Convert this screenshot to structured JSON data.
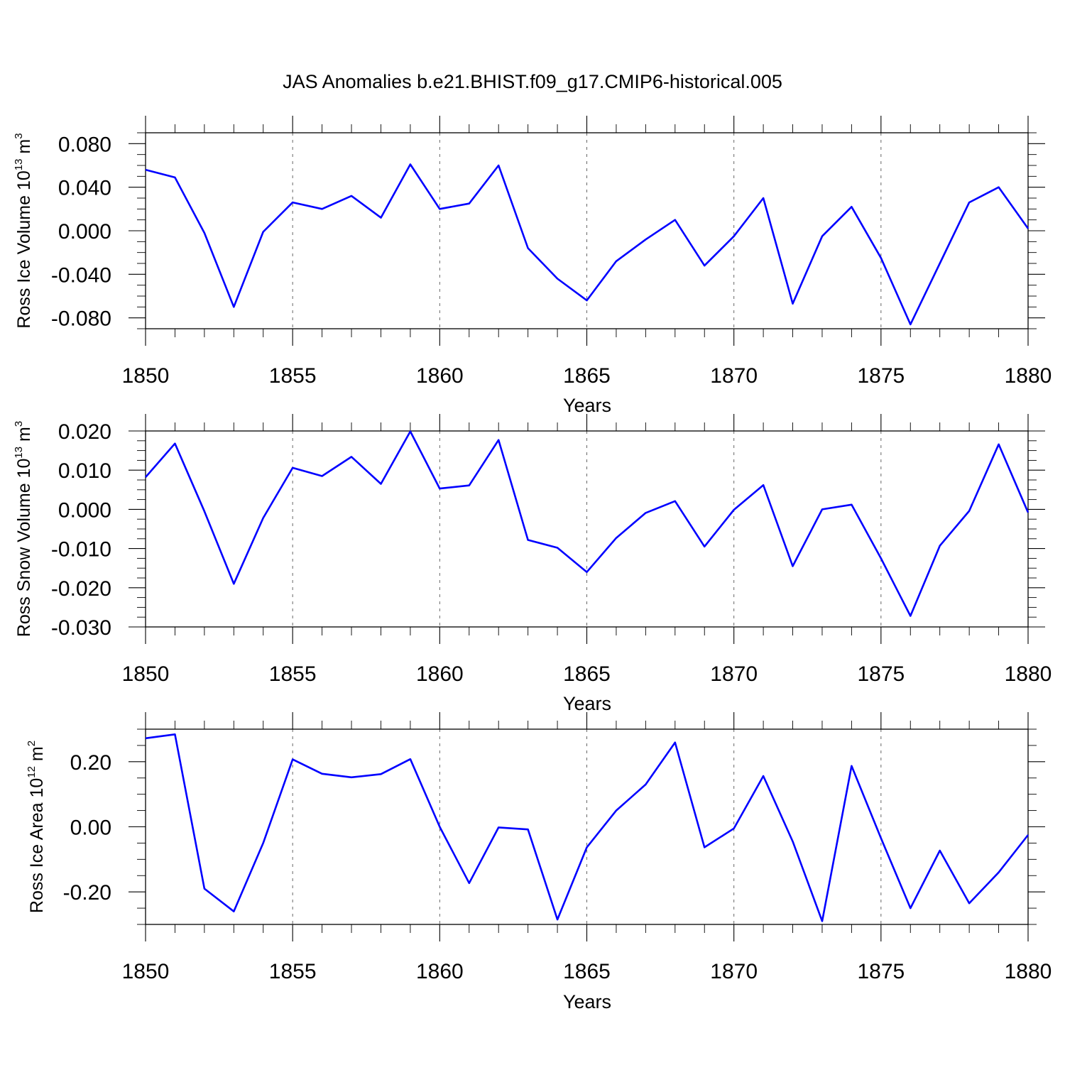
{
  "title": "JAS Anomalies b.e21.BHIST.f09_g17.CMIP6-historical.005",
  "colors": {
    "series": "#0000ff",
    "axes": "#000000",
    "grid": "#666666"
  },
  "chart_data": [
    {
      "type": "line",
      "ylabel": {
        "name": "Ross Ice Volume 10",
        "exp": "13",
        "unit": " m",
        "unit_exp": "3"
      },
      "xlabel": "Years",
      "xlim": [
        1850,
        1880
      ],
      "ylim": [
        -0.09,
        0.09
      ],
      "x_ticks": [
        1850,
        1855,
        1860,
        1865,
        1870,
        1875,
        1880
      ],
      "x_tick_labels": [
        "1850",
        "1855",
        "1860",
        "1865",
        "1870",
        "1875",
        "1880"
      ],
      "y_ticks": [
        -0.08,
        -0.04,
        0.0,
        0.04,
        0.08
      ],
      "y_tick_labels": [
        "-0.080",
        "-0.040",
        "0.000",
        "0.040",
        "0.080"
      ],
      "y_minor_step": 0.01,
      "grid_x": true,
      "series": [
        {
          "name": "Ross Ice Volume",
          "x": [
            1850,
            1851,
            1852,
            1853,
            1854,
            1855,
            1856,
            1857,
            1858,
            1859,
            1860,
            1861,
            1862,
            1863,
            1864,
            1865,
            1866,
            1867,
            1868,
            1869,
            1870,
            1871,
            1872,
            1873,
            1874,
            1875,
            1876,
            1877,
            1878,
            1879,
            1880
          ],
          "values": [
            0.056,
            0.049,
            -0.002,
            -0.07,
            -0.001,
            0.026,
            0.02,
            0.032,
            0.012,
            0.061,
            0.02,
            0.025,
            0.06,
            -0.016,
            -0.044,
            -0.064,
            -0.028,
            -0.008,
            0.01,
            -0.032,
            -0.005,
            0.03,
            -0.067,
            -0.005,
            0.022,
            -0.025,
            -0.086,
            -0.03,
            0.026,
            0.04,
            0.002
          ]
        }
      ]
    },
    {
      "type": "line",
      "ylabel": {
        "name": "Ross Snow Volume 10",
        "exp": "13",
        "unit": " m",
        "unit_exp": "3"
      },
      "xlabel": "Years",
      "xlim": [
        1850,
        1880
      ],
      "ylim": [
        -0.03,
        0.02
      ],
      "x_ticks": [
        1850,
        1855,
        1860,
        1865,
        1870,
        1875,
        1880
      ],
      "x_tick_labels": [
        "1850",
        "1855",
        "1860",
        "1865",
        "1870",
        "1875",
        "1880"
      ],
      "y_ticks": [
        -0.03,
        -0.02,
        -0.01,
        0.0,
        0.01,
        0.02
      ],
      "y_tick_labels": [
        "-0.030",
        "-0.020",
        "-0.010",
        "0.000",
        "0.010",
        "0.020"
      ],
      "y_minor_step": 0.0025,
      "grid_x": true,
      "series": [
        {
          "name": "Ross Snow Volume",
          "x": [
            1850,
            1851,
            1852,
            1853,
            1854,
            1855,
            1856,
            1857,
            1858,
            1859,
            1860,
            1861,
            1862,
            1863,
            1864,
            1865,
            1866,
            1867,
            1868,
            1869,
            1870,
            1871,
            1872,
            1873,
            1874,
            1875,
            1876,
            1877,
            1878,
            1879,
            1880
          ],
          "values": [
            0.0082,
            0.0168,
            -0.0005,
            -0.019,
            -0.0022,
            0.0106,
            0.0085,
            0.0134,
            0.0065,
            0.0199,
            0.0053,
            0.0061,
            0.0177,
            -0.0078,
            -0.0098,
            -0.016,
            -0.0073,
            -0.0009,
            0.0021,
            -0.0095,
            -0.0001,
            0.0062,
            -0.0145,
            0.0,
            0.0012,
            -0.0125,
            -0.0272,
            -0.0093,
            -0.0004,
            0.0166,
            -0.0008
          ]
        }
      ]
    },
    {
      "type": "line",
      "ylabel": {
        "name": "Ross Ice Area 10",
        "exp": "12",
        "unit": " m",
        "unit_exp": "2"
      },
      "xlabel": "Years",
      "xlim": [
        1850,
        1880
      ],
      "ylim": [
        -0.3,
        0.3
      ],
      "x_ticks": [
        1850,
        1855,
        1860,
        1865,
        1870,
        1875,
        1880
      ],
      "x_tick_labels": [
        "1850",
        "1855",
        "1860",
        "1865",
        "1870",
        "1875",
        "1880"
      ],
      "y_ticks": [
        -0.2,
        0.0,
        0.2
      ],
      "y_tick_labels": [
        "-0.20",
        "0.00",
        "0.20"
      ],
      "y_minor_step": 0.05,
      "grid_x": true,
      "series": [
        {
          "name": "Ross Ice Area",
          "x": [
            1850,
            1851,
            1852,
            1853,
            1854,
            1855,
            1856,
            1857,
            1858,
            1859,
            1860,
            1861,
            1862,
            1863,
            1864,
            1865,
            1866,
            1867,
            1868,
            1869,
            1870,
            1871,
            1872,
            1873,
            1874,
            1875,
            1876,
            1877,
            1878,
            1879,
            1880
          ],
          "values": [
            0.272,
            0.284,
            -0.19,
            -0.26,
            -0.05,
            0.207,
            0.163,
            0.152,
            0.162,
            0.208,
            0.0,
            -0.173,
            -0.002,
            -0.008,
            -0.285,
            -0.063,
            0.05,
            0.13,
            0.259,
            -0.063,
            -0.005,
            0.156,
            -0.045,
            -0.29,
            0.187,
            -0.035,
            -0.25,
            -0.073,
            -0.235,
            -0.14,
            -0.025
          ]
        }
      ]
    }
  ]
}
